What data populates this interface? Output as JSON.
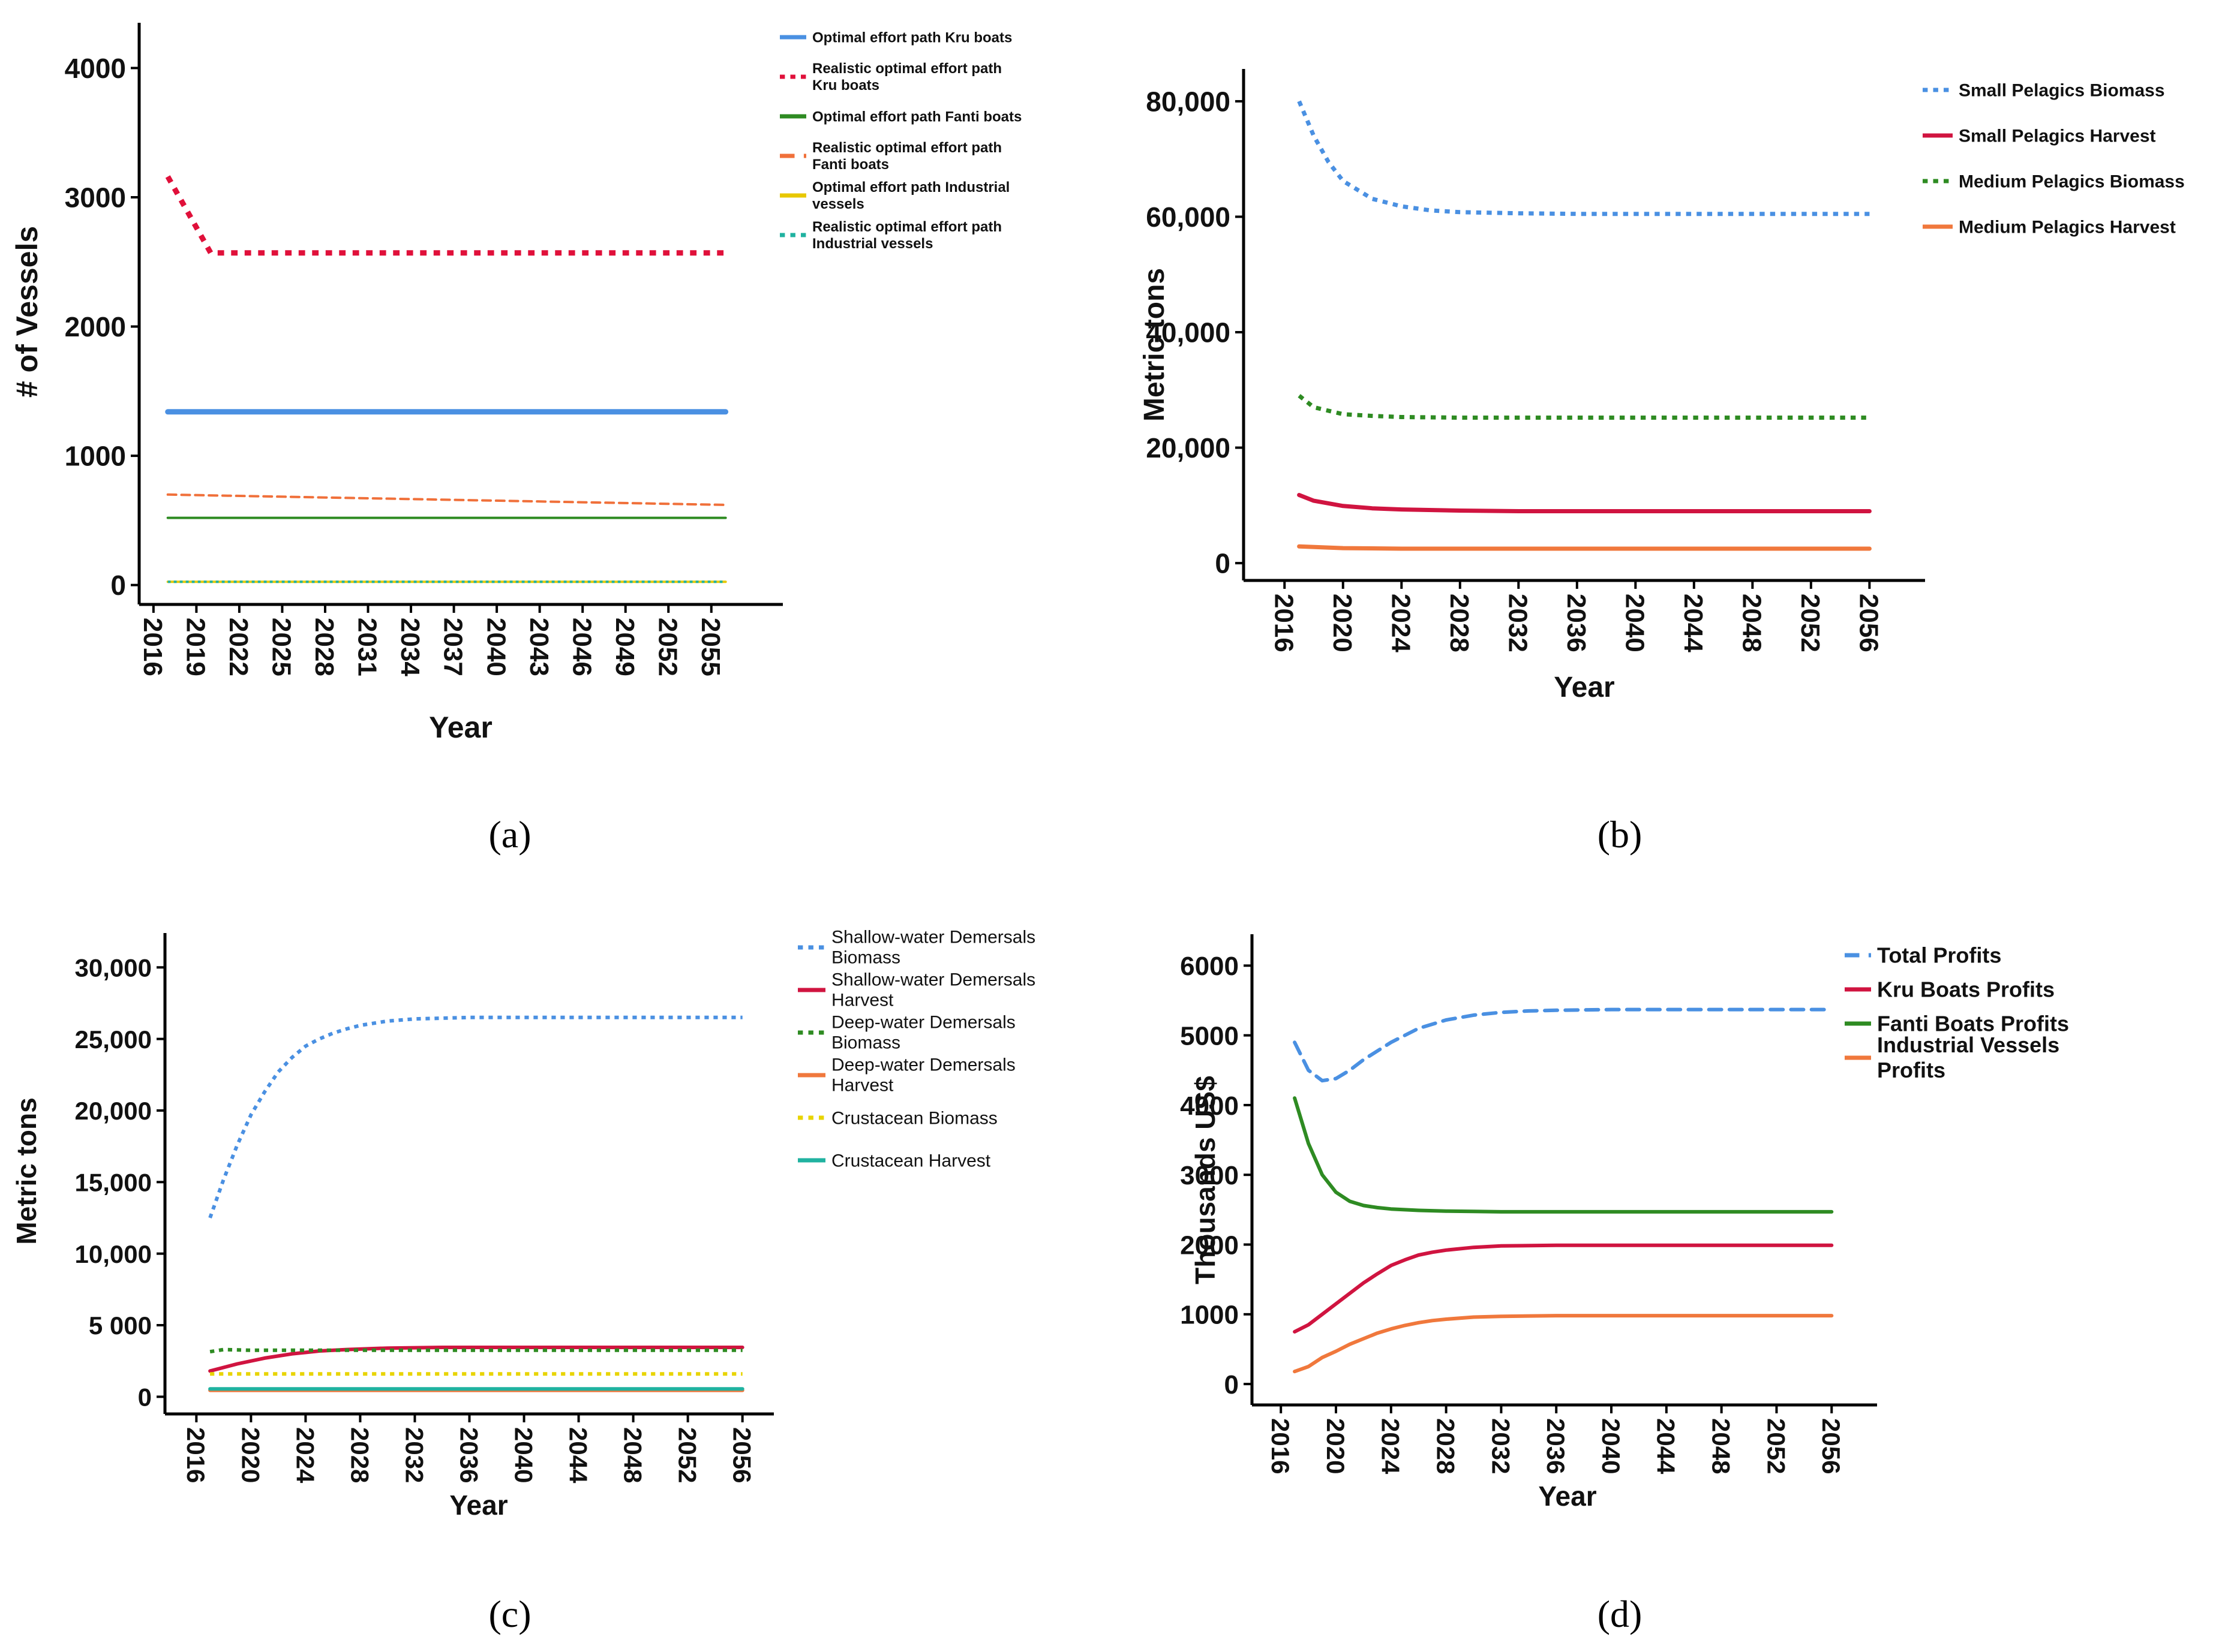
{
  "panel_labels": [
    "(a)",
    "(b)",
    "(c)",
    "(d)"
  ],
  "chart_data": [
    {
      "type": "line",
      "panel": "(a)",
      "title": "",
      "xlabel": "Year",
      "ylabel": "# of Vessels",
      "x_ticks": [
        "2016",
        "2019",
        "2022",
        "2025",
        "2028",
        "2031",
        "2034",
        "2037",
        "2040",
        "2043",
        "2046",
        "2049",
        "2052",
        "2055"
      ],
      "y_ticks": [
        "0",
        "1000",
        "2000",
        "3000",
        "4000"
      ],
      "xlim": [
        2015,
        2060
      ],
      "ylim": [
        -150,
        4350
      ],
      "legend_position": "top-right",
      "series": [
        {
          "name": "Optimal effort path Kru boats",
          "color": "#4a90e2",
          "dash": "solid",
          "width": 9,
          "x": [
            2017,
            2056
          ],
          "y": [
            1340,
            1340
          ]
        },
        {
          "name": "Realistic optimal effort path Kru boats",
          "color": "#e0103a",
          "dash": "dotted",
          "width": 9,
          "x": [
            2017,
            2020,
            2056
          ],
          "y": [
            3160,
            2570,
            2570
          ]
        },
        {
          "name": "Optimal effort path Fanti boats",
          "color": "#2e8b22",
          "dash": "solid",
          "width": 4,
          "x": [
            2017,
            2056
          ],
          "y": [
            520,
            520
          ]
        },
        {
          "name": "Realistic optimal effort path Fanti boats",
          "color": "#f0703a",
          "dash": "dashed",
          "width": 4,
          "x": [
            2017,
            2056
          ],
          "y": [
            700,
            620
          ]
        },
        {
          "name": "Optimal effort path Industrial vessels",
          "color": "#e8c800",
          "dash": "solid",
          "width": 4,
          "x": [
            2017,
            2056
          ],
          "y": [
            25,
            25
          ]
        },
        {
          "name": "Realistic optimal effort path Industrial vessels",
          "color": "#20b2a0",
          "dash": "dotted",
          "width": 4,
          "x": [
            2017,
            2056
          ],
          "y": [
            25,
            25
          ]
        }
      ]
    },
    {
      "type": "line",
      "panel": "(b)",
      "title": "",
      "xlabel": "Year",
      "ylabel": "Metric tons",
      "x_ticks": [
        "2016",
        "2020",
        "2024",
        "2028",
        "2032",
        "2036",
        "2040",
        "2044",
        "2048",
        "2052",
        "2056"
      ],
      "y_ticks": [
        "0",
        "20,000",
        "40,000",
        "60,000",
        "80,000"
      ],
      "xlim": [
        2013.2,
        2059.8
      ],
      "ylim": [
        -3000,
        85600
      ],
      "legend_position": "top-right",
      "series": [
        {
          "name": "Small Pelagics Biomass",
          "color": "#4a90e2",
          "dash": "dotted",
          "width": 7,
          "x": [
            2017,
            2018,
            2019,
            2020,
            2022,
            2024,
            2026,
            2028,
            2032,
            2036,
            2040,
            2044,
            2048,
            2052,
            2056
          ],
          "y": [
            80000,
            74000,
            69500,
            66200,
            63100,
            61800,
            61100,
            60800,
            60600,
            60500,
            60500,
            60500,
            60500,
            60500,
            60500
          ]
        },
        {
          "name": "Small Pelagics Harvest",
          "color": "#d01440",
          "dash": "solid",
          "width": 7,
          "x": [
            2017,
            2018,
            2020,
            2022,
            2024,
            2028,
            2032,
            2036,
            2040,
            2044,
            2048,
            2052,
            2056
          ],
          "y": [
            11800,
            10800,
            9900,
            9500,
            9300,
            9100,
            9000,
            9000,
            9000,
            9000,
            9000,
            9000,
            9000
          ]
        },
        {
          "name": "Medium Pelagics Biomass",
          "color": "#2e8b22",
          "dash": "dotted",
          "width": 7,
          "x": [
            2017,
            2018,
            2020,
            2022,
            2024,
            2028,
            2032,
            2036,
            2040,
            2044,
            2048,
            2052,
            2056
          ],
          "y": [
            29000,
            27000,
            25800,
            25500,
            25300,
            25200,
            25200,
            25200,
            25200,
            25200,
            25200,
            25200,
            25200
          ]
        },
        {
          "name": "Medium Pelagics Harvest",
          "color": "#f0783c",
          "dash": "solid",
          "width": 7,
          "x": [
            2017,
            2020,
            2024,
            2028,
            2032,
            2036,
            2040,
            2044,
            2048,
            2052,
            2056
          ],
          "y": [
            2900,
            2600,
            2500,
            2500,
            2500,
            2500,
            2500,
            2500,
            2500,
            2500,
            2500
          ]
        }
      ]
    },
    {
      "type": "line",
      "panel": "(c)",
      "title": "",
      "xlabel": "Year",
      "ylabel": "Metric tons",
      "x_ticks": [
        "2016",
        "2020",
        "2024",
        "2028",
        "2032",
        "2036",
        "2040",
        "2044",
        "2048",
        "2052",
        "2056"
      ],
      "y_ticks": [
        "0",
        "5 000",
        "10,000",
        "15,000",
        "20,000",
        "25,000",
        "30,000"
      ],
      "xlim": [
        2013.7,
        2058.3
      ],
      "ylim": [
        -1200,
        32400
      ],
      "legend_position": "top-right",
      "series": [
        {
          "name": "Shallow-water Demersals Biomass",
          "color": "#4a90e2",
          "dash": "dotted",
          "width": 6,
          "x": [
            2017,
            2018,
            2019,
            2020,
            2021,
            2022,
            2023,
            2024,
            2025,
            2026,
            2027,
            2028,
            2030,
            2032,
            2034,
            2036,
            2040,
            2044,
            2048,
            2052,
            2056
          ],
          "y": [
            12500,
            15200,
            17600,
            19700,
            21300,
            22700,
            23700,
            24500,
            25000,
            25400,
            25700,
            25950,
            26250,
            26400,
            26450,
            26500,
            26500,
            26500,
            26500,
            26500,
            26500
          ]
        },
        {
          "name": "Shallow-water Demersals Harvest",
          "color": "#d01440",
          "dash": "solid",
          "width": 6,
          "x": [
            2017,
            2019,
            2021,
            2023,
            2025,
            2027,
            2030,
            2034,
            2040,
            2048,
            2056
          ],
          "y": [
            1800,
            2300,
            2700,
            3000,
            3200,
            3300,
            3400,
            3450,
            3450,
            3450,
            3450
          ]
        },
        {
          "name": "Deep-water Demersals Biomass",
          "color": "#2e8b22",
          "dash": "dotted",
          "width": 6,
          "x": [
            2017,
            2018,
            2020,
            2024,
            2028,
            2036,
            2044,
            2056
          ],
          "y": [
            3150,
            3300,
            3250,
            3250,
            3250,
            3250,
            3250,
            3250
          ]
        },
        {
          "name": "Deep-water Demersals Harvest",
          "color": "#f0783c",
          "dash": "solid",
          "width": 6,
          "x": [
            2017,
            2056
          ],
          "y": [
            450,
            450
          ]
        },
        {
          "name": "Crustacean Biomass",
          "color": "#e8d400",
          "dash": "dotted",
          "width": 6,
          "x": [
            2017,
            2056
          ],
          "y": [
            1600,
            1600
          ]
        },
        {
          "name": "Crustacean Harvest",
          "color": "#20b2a0",
          "dash": "solid",
          "width": 6,
          "x": [
            2017,
            2056
          ],
          "y": [
            550,
            550
          ]
        }
      ]
    },
    {
      "type": "line",
      "panel": "(d)",
      "title": "",
      "xlabel": "Year",
      "ylabel": "Thousands US$",
      "x_ticks": [
        "2016",
        "2020",
        "2024",
        "2028",
        "2032",
        "2036",
        "2040",
        "2044",
        "2048",
        "2052",
        "2056"
      ],
      "y_ticks": [
        "0",
        "1000",
        "2000",
        "3000",
        "4000",
        "5000",
        "6000"
      ],
      "xlim": [
        2013.9,
        2059.3
      ],
      "ylim": [
        -300,
        6450
      ],
      "legend_position": "top-right",
      "series": [
        {
          "name": "Total Profits",
          "color": "#4a90e2",
          "dash": "dashed",
          "width": 6,
          "x": [
            2017,
            2018,
            2019,
            2020,
            2021,
            2022,
            2024,
            2026,
            2028,
            2030,
            2032,
            2034,
            2036,
            2040,
            2044,
            2048,
            2052,
            2056
          ],
          "y": [
            4900,
            4500,
            4350,
            4380,
            4500,
            4650,
            4900,
            5100,
            5220,
            5290,
            5330,
            5350,
            5360,
            5370,
            5370,
            5370,
            5370,
            5370
          ]
        },
        {
          "name": "Kru Boats Profits",
          "color": "#d01440",
          "dash": "solid",
          "width": 6,
          "x": [
            2017,
            2018,
            2019,
            2020,
            2021,
            2022,
            2023,
            2024,
            2025,
            2026,
            2027,
            2028,
            2030,
            2032,
            2036,
            2040,
            2044,
            2048,
            2052,
            2056
          ],
          "y": [
            750,
            850,
            1000,
            1150,
            1300,
            1450,
            1580,
            1700,
            1780,
            1850,
            1890,
            1920,
            1960,
            1980,
            1990,
            1990,
            1990,
            1990,
            1990,
            1990
          ]
        },
        {
          "name": "Fanti Boats Profits",
          "color": "#2e8b22",
          "dash": "solid",
          "width": 6,
          "x": [
            2017,
            2018,
            2019,
            2020,
            2021,
            2022,
            2023,
            2024,
            2025,
            2026,
            2028,
            2030,
            2032,
            2036,
            2040,
            2044,
            2048,
            2052,
            2056
          ],
          "y": [
            4100,
            3450,
            3000,
            2750,
            2620,
            2560,
            2530,
            2510,
            2500,
            2490,
            2480,
            2475,
            2470,
            2470,
            2470,
            2470,
            2470,
            2470,
            2470
          ]
        },
        {
          "name": "Industrial Vessels Profits",
          "color": "#f0783c",
          "dash": "solid",
          "width": 6,
          "x": [
            2017,
            2018,
            2019,
            2020,
            2021,
            2022,
            2023,
            2024,
            2025,
            2026,
            2027,
            2028,
            2030,
            2032,
            2036,
            2040,
            2044,
            2048,
            2052,
            2056
          ],
          "y": [
            180,
            250,
            380,
            470,
            570,
            650,
            730,
            790,
            840,
            880,
            910,
            930,
            960,
            970,
            980,
            980,
            980,
            980,
            980,
            980
          ]
        }
      ]
    }
  ]
}
